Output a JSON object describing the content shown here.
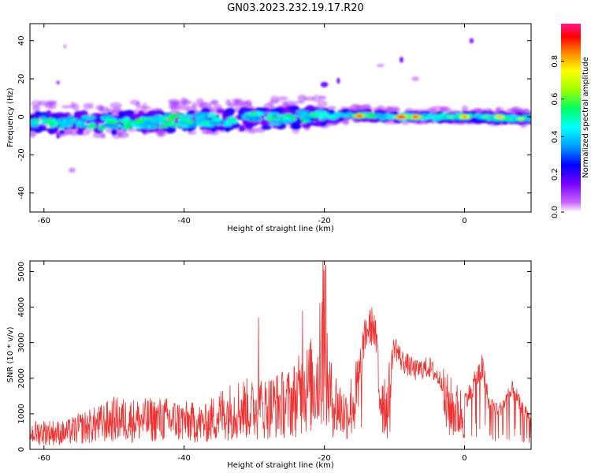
{
  "figure": {
    "title": "GN03.2023.232.19.17.R20"
  },
  "chart_data": [
    {
      "type": "heatmap",
      "xlabel": "Height of straight line (km)",
      "ylabel": "Frequency (Hz)",
      "xlim": [
        -62,
        9.5
      ],
      "ylim": [
        -50,
        49
      ],
      "xticks": [
        -60,
        -40,
        -20,
        0
      ],
      "yticks": [
        -40,
        -20,
        0,
        20,
        40
      ],
      "colorbar": {
        "label": "Normalized spectral amplitude",
        "range": [
          0,
          1
        ],
        "ticks": [
          0.0,
          0.2,
          0.4,
          0.6,
          0.8
        ]
      },
      "ridge": [
        {
          "x": -62,
          "y": -3
        },
        {
          "x": -50,
          "y": -3
        },
        {
          "x": -40,
          "y": -2
        },
        {
          "x": -30,
          "y": -1
        },
        {
          "x": -20,
          "y": 0
        },
        {
          "x": -15,
          "y": 1
        },
        {
          "x": -10,
          "y": 0
        },
        {
          "x": 0,
          "y": 0
        },
        {
          "x": 9,
          "y": -1
        }
      ],
      "hotspots": [
        {
          "x": -15,
          "y": 0.5,
          "a": 0.9
        },
        {
          "x": -9,
          "y": 0,
          "a": 0.95
        },
        {
          "x": -7,
          "y": 0,
          "a": 0.9
        },
        {
          "x": 0,
          "y": 0,
          "a": 0.85
        },
        {
          "x": 5,
          "y": 0,
          "a": 0.8
        },
        {
          "x": 8,
          "y": -1,
          "a": 0.7
        },
        {
          "x": -45,
          "y": -5,
          "a": 0.45
        },
        {
          "x": -57,
          "y": -2,
          "a": 0.45
        },
        {
          "x": -30,
          "y": -1,
          "a": 0.4
        },
        {
          "x": -2,
          "y": 0,
          "a": 0.6
        },
        {
          "x": 3,
          "y": 0,
          "a": 0.6
        }
      ]
    },
    {
      "type": "line",
      "xlabel": "Height of straight line (km)",
      "ylabel": "SNR (10 * v/v)",
      "xlim": [
        -62,
        9.5
      ],
      "ylim": [
        0,
        5300
      ],
      "xticks": [
        -60,
        -40,
        -20,
        0
      ],
      "yticks": [
        0,
        1000,
        2000,
        3000,
        4000,
        5000
      ],
      "color": "#ee3333",
      "envelope": [
        {
          "x": -62,
          "y": 700
        },
        {
          "x": -60,
          "y": 750
        },
        {
          "x": -57,
          "y": 700
        },
        {
          "x": -55,
          "y": 900
        },
        {
          "x": -52,
          "y": 1100
        },
        {
          "x": -50,
          "y": 1300
        },
        {
          "x": -46,
          "y": 1250
        },
        {
          "x": -43,
          "y": 1300
        },
        {
          "x": -40,
          "y": 1200
        },
        {
          "x": -37,
          "y": 1100
        },
        {
          "x": -35,
          "y": 1500
        },
        {
          "x": -32,
          "y": 1800
        },
        {
          "x": -30,
          "y": 1700
        },
        {
          "x": -27,
          "y": 1900
        },
        {
          "x": -25,
          "y": 2000
        },
        {
          "x": -22.5,
          "y": 2600
        },
        {
          "x": -21,
          "y": 3000
        },
        {
          "x": -20,
          "y": 3300
        },
        {
          "x": -19,
          "y": 2200
        },
        {
          "x": -17,
          "y": 1500
        },
        {
          "x": -15.5,
          "y": 2200
        },
        {
          "x": -14,
          "y": 3700
        },
        {
          "x": -13,
          "y": 3900
        },
        {
          "x": -12,
          "y": 2500
        },
        {
          "x": -11,
          "y": 1800
        },
        {
          "x": -10,
          "y": 3200
        },
        {
          "x": -9,
          "y": 2700
        },
        {
          "x": -7,
          "y": 2400
        },
        {
          "x": -5,
          "y": 2500
        },
        {
          "x": -3,
          "y": 2000
        },
        {
          "x": -1.5,
          "y": 1700
        },
        {
          "x": 0,
          "y": 1500
        },
        {
          "x": 1,
          "y": 1800
        },
        {
          "x": 2.5,
          "y": 2500
        },
        {
          "x": 3.5,
          "y": 1400
        },
        {
          "x": 5,
          "y": 1200
        },
        {
          "x": 7,
          "y": 1800
        },
        {
          "x": 8,
          "y": 1300
        },
        {
          "x": 9.5,
          "y": 900
        }
      ]
    }
  ]
}
